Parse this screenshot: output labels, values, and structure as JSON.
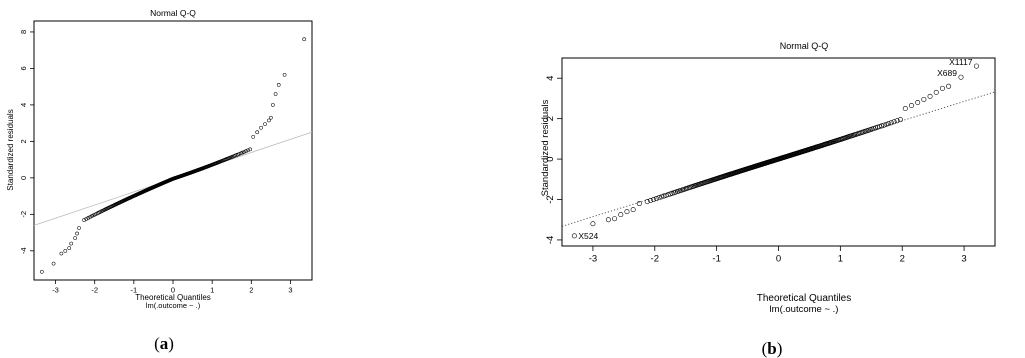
{
  "chart_data": [
    {
      "type": "scatter",
      "title": "Normal Q-Q",
      "xlabel": "Theoretical Quantiles",
      "xsublabel": "lm(.outcome ~ .)",
      "ylabel": "Standardized residuals",
      "caption_letter": "a",
      "xlim": [
        -3.55,
        3.55
      ],
      "ylim": [
        -5.6,
        8.6
      ],
      "xticks": [
        -3,
        -2,
        -1,
        0,
        1,
        2,
        3
      ],
      "yticks": [
        -4,
        -2,
        0,
        2,
        4,
        6,
        8
      ],
      "reference_line": {
        "intercept": -0.05,
        "slope": 0.72,
        "style": "solid-gray"
      },
      "point_labels": [],
      "body": {
        "n": 260,
        "x_from": -2.3,
        "x_to": 2.0
      },
      "tail_points": [
        {
          "x": -3.35,
          "y": -5.15
        },
        {
          "x": -3.05,
          "y": -4.7
        },
        {
          "x": -2.85,
          "y": -4.15
        },
        {
          "x": -2.75,
          "y": -4.0
        },
        {
          "x": -2.65,
          "y": -3.85
        },
        {
          "x": -2.6,
          "y": -3.6
        },
        {
          "x": -2.5,
          "y": -3.3
        },
        {
          "x": -2.45,
          "y": -3.05
        },
        {
          "x": -2.4,
          "y": -2.75
        },
        {
          "x": 2.05,
          "y": 2.25
        },
        {
          "x": 2.15,
          "y": 2.5
        },
        {
          "x": 2.25,
          "y": 2.75
        },
        {
          "x": 2.35,
          "y": 2.95
        },
        {
          "x": 2.45,
          "y": 3.15
        },
        {
          "x": 2.5,
          "y": 3.3
        },
        {
          "x": 2.55,
          "y": 4.0
        },
        {
          "x": 2.62,
          "y": 4.6
        },
        {
          "x": 2.7,
          "y": 5.1
        },
        {
          "x": 2.85,
          "y": 5.65
        },
        {
          "x": 3.35,
          "y": 7.6
        }
      ]
    },
    {
      "type": "scatter",
      "title": "Normal Q-Q",
      "xlabel": "Theoretical Quantiles",
      "xsublabel": "lm(.outcome ~ .)",
      "ylabel": "Standardized residuals",
      "caption_letter": "b",
      "xlim": [
        -3.5,
        3.5
      ],
      "ylim": [
        -4.3,
        5.0
      ],
      "xticks": [
        -3,
        -2,
        -1,
        0,
        1,
        2,
        3
      ],
      "yticks": [
        -4,
        -2,
        0,
        2,
        4
      ],
      "reference_line": {
        "intercept": 0.0,
        "slope": 0.95,
        "style": "dotted"
      },
      "point_labels": [
        {
          "text": "X1117",
          "x": 3.2,
          "y": 4.6
        },
        {
          "text": "X689",
          "x": 2.95,
          "y": 4.05
        },
        {
          "text": "X524",
          "x": -3.3,
          "y": -3.8
        }
      ],
      "body": {
        "n": 260,
        "x_from": -2.15,
        "x_to": 2.0
      },
      "tail_points": [
        {
          "x": -3.3,
          "y": -3.8
        },
        {
          "x": -3.0,
          "y": -3.2
        },
        {
          "x": -2.75,
          "y": -3.0
        },
        {
          "x": -2.65,
          "y": -2.95
        },
        {
          "x": -2.55,
          "y": -2.75
        },
        {
          "x": -2.45,
          "y": -2.6
        },
        {
          "x": -2.35,
          "y": -2.5
        },
        {
          "x": -2.25,
          "y": -2.2
        },
        {
          "x": 2.05,
          "y": 2.5
        },
        {
          "x": 2.15,
          "y": 2.65
        },
        {
          "x": 2.25,
          "y": 2.8
        },
        {
          "x": 2.35,
          "y": 2.95
        },
        {
          "x": 2.45,
          "y": 3.1
        },
        {
          "x": 2.55,
          "y": 3.3
        },
        {
          "x": 2.65,
          "y": 3.5
        },
        {
          "x": 2.75,
          "y": 3.6
        },
        {
          "x": 2.95,
          "y": 4.05
        },
        {
          "x": 3.2,
          "y": 4.6
        }
      ]
    }
  ]
}
